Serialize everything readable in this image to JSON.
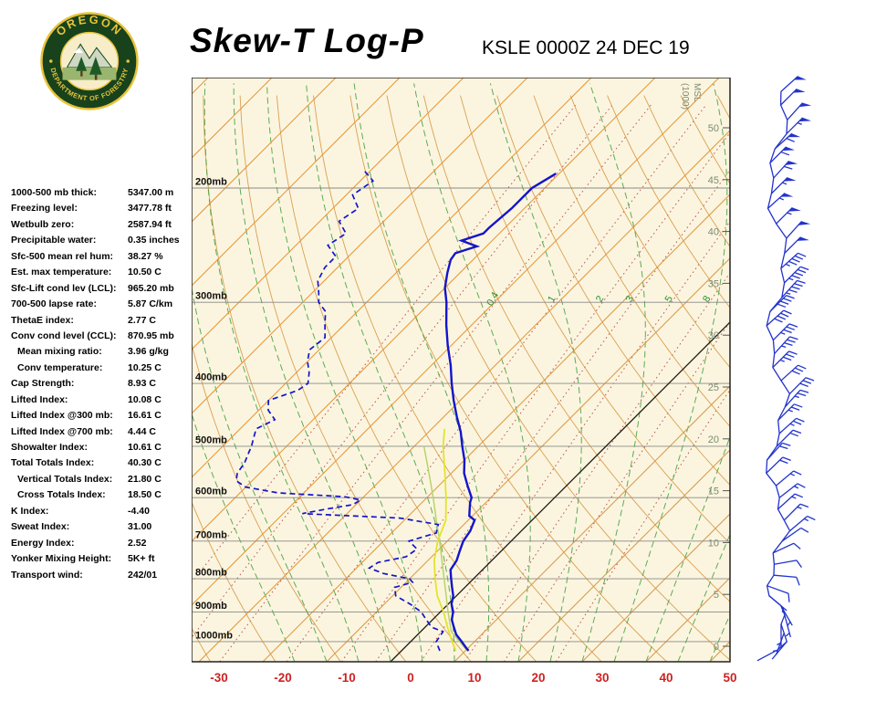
{
  "header": {
    "title": "Skew-T Log-P",
    "station_line": "KSLE 0000Z 24 DEC 19"
  },
  "logo": {
    "top_text": "OREGON",
    "bottom_text": "DEPARTMENT OF FORESTRY"
  },
  "indices": [
    {
      "label": "1000-500 mb thick:",
      "value": "5347.00 m",
      "indent": false
    },
    {
      "label": "Freezing level:",
      "value": "3477.78 ft",
      "indent": false
    },
    {
      "label": "Wetbulb zero:",
      "value": "2587.94 ft",
      "indent": false
    },
    {
      "label": "Precipitable water:",
      "value": "0.35 inches",
      "indent": false
    },
    {
      "label": "Sfc-500 mean rel hum:",
      "value": "38.27 %",
      "indent": false
    },
    {
      "label": "Est. max temperature:",
      "value": "10.50 C",
      "indent": false
    },
    {
      "label": "Sfc-Lift cond lev (LCL):",
      "value": "965.20 mb",
      "indent": false
    },
    {
      "label": "700-500 lapse rate:",
      "value": "5.87 C/km",
      "indent": false
    },
    {
      "label": "ThetaE index:",
      "value": "2.77 C",
      "indent": false
    },
    {
      "label": "Conv cond level (CCL):",
      "value": "870.95 mb",
      "indent": false
    },
    {
      "label": "Mean mixing ratio:",
      "value": "3.96 g/kg",
      "indent": true
    },
    {
      "label": "Conv temperature:",
      "value": "10.25 C",
      "indent": true
    },
    {
      "label": "Cap Strength:",
      "value": "8.93 C",
      "indent": false
    },
    {
      "label": "Lifted Index:",
      "value": "10.08 C",
      "indent": false
    },
    {
      "label": "Lifted Index @300 mb:",
      "value": "16.61 C",
      "indent": false
    },
    {
      "label": "Lifted Index @700 mb:",
      "value": "4.44 C",
      "indent": false
    },
    {
      "label": "Showalter Index:",
      "value": "10.61 C",
      "indent": false
    },
    {
      "label": "Total Totals Index:",
      "value": "40.30 C",
      "indent": false
    },
    {
      "label": "Vertical Totals Index:",
      "value": "21.80 C",
      "indent": true
    },
    {
      "label": "Cross Totals Index:",
      "value": "18.50 C",
      "indent": true
    },
    {
      "label": "K Index:",
      "value": "-4.40",
      "indent": false
    },
    {
      "label": "Sweat Index:",
      "value": "31.00",
      "indent": false
    },
    {
      "label": "Energy Index:",
      "value": "2.52",
      "indent": false
    },
    {
      "label": "Yonker Mixing Height:",
      "value": "5K+ ft",
      "indent": false
    },
    {
      "label": "Transport wind:",
      "value": "242/01",
      "indent": false
    }
  ],
  "chart_data": {
    "type": "skewt_log_p",
    "title": "Skew-T Log-P",
    "annotation": "KSLE 0000Z 24 DEC 19",
    "pressure_axis": {
      "levels_mb": [
        200,
        300,
        400,
        500,
        600,
        700,
        800,
        900,
        1000
      ],
      "label_suffix": "mb"
    },
    "temp_axis": {
      "ticks_c": [
        -30,
        -20,
        -10,
        0,
        10,
        20,
        30,
        40,
        50
      ]
    },
    "height_axis": {
      "ticks_kft": [
        0,
        5,
        10,
        15,
        20,
        25,
        30,
        35,
        40,
        45,
        50
      ],
      "notes": [
        "(1000)",
        "MSL"
      ]
    },
    "mixing_ratio_lines_gkg": [
      0.1,
      0.2,
      0.4,
      1,
      2,
      3,
      5,
      8,
      12,
      20
    ],
    "mixing_ratio_labels_gkg": [
      0.4,
      1,
      2,
      3,
      5,
      8
    ],
    "isotherms_c": {
      "min": -120,
      "max": 50,
      "step": 10
    },
    "dry_adiabats_k": {
      "min": 240,
      "max": 420,
      "step": 10
    },
    "moist_adiabats_start_c": {
      "min": -15,
      "max": 55,
      "step": 5
    },
    "sounding": {
      "temperature_p_c": [
        [
          1033,
          10.5
        ],
        [
          1020,
          9.5
        ],
        [
          1000,
          8.0
        ],
        [
          975,
          6.0
        ],
        [
          950,
          4.5
        ],
        [
          925,
          3.0
        ],
        [
          900,
          2.0
        ],
        [
          875,
          0.5
        ],
        [
          850,
          -0.5
        ],
        [
          825,
          -2.0
        ],
        [
          800,
          -3.5
        ],
        [
          775,
          -5.0
        ],
        [
          750,
          -5.5
        ],
        [
          725,
          -6.5
        ],
        [
          700,
          -7.5
        ],
        [
          675,
          -8.0
        ],
        [
          650,
          -9.0
        ],
        [
          640,
          -10.5
        ],
        [
          625,
          -11.5
        ],
        [
          610,
          -12.5
        ],
        [
          600,
          -13.0
        ],
        [
          575,
          -15.5
        ],
        [
          550,
          -18.0
        ],
        [
          525,
          -20.0
        ],
        [
          500,
          -22.5
        ],
        [
          475,
          -25.0
        ],
        [
          450,
          -28.0
        ],
        [
          425,
          -31.0
        ],
        [
          400,
          -34.0
        ],
        [
          375,
          -37.0
        ],
        [
          350,
          -40.5
        ],
        [
          325,
          -44.0
        ],
        [
          300,
          -47.5
        ],
        [
          285,
          -50.0
        ],
        [
          270,
          -52.0
        ],
        [
          258,
          -53.5
        ],
        [
          252,
          -53.8
        ],
        [
          246,
          -51.5
        ],
        [
          241,
          -54.8
        ],
        [
          235,
          -52.5
        ],
        [
          230,
          -52.5
        ],
        [
          215,
          -52.0
        ],
        [
          200,
          -52.0
        ],
        [
          190,
          -50.5
        ]
      ],
      "dewpoint_p_c": [
        [
          1033,
          6.0
        ],
        [
          1000,
          4.0
        ],
        [
          965,
          3.5
        ],
        [
          950,
          1.0
        ],
        [
          925,
          -1.0
        ],
        [
          900,
          -3.0
        ],
        [
          875,
          -6.0
        ],
        [
          850,
          -9.5
        ],
        [
          825,
          -11.0
        ],
        [
          810,
          -9.0
        ],
        [
          800,
          -10.0
        ],
        [
          785,
          -15.0
        ],
        [
          770,
          -18.0
        ],
        [
          755,
          -17.5
        ],
        [
          740,
          -14.0
        ],
        [
          720,
          -13.5
        ],
        [
          700,
          -16.0
        ],
        [
          680,
          -13.0
        ],
        [
          660,
          -14.0
        ],
        [
          645,
          -21.0
        ],
        [
          635,
          -37.0
        ],
        [
          625,
          -34.0
        ],
        [
          615,
          -30.5
        ],
        [
          605,
          -30.0
        ],
        [
          598,
          -33.0
        ],
        [
          590,
          -44.0
        ],
        [
          578,
          -50.0
        ],
        [
          565,
          -52.5
        ],
        [
          550,
          -53.5
        ],
        [
          530,
          -54.0
        ],
        [
          510,
          -55.0
        ],
        [
          500,
          -55.5
        ],
        [
          485,
          -56.5
        ],
        [
          470,
          -57.5
        ],
        [
          455,
          -56.0
        ],
        [
          440,
          -58.5
        ],
        [
          425,
          -60.0
        ],
        [
          410,
          -57.0
        ],
        [
          400,
          -56.5
        ],
        [
          385,
          -58.0
        ],
        [
          370,
          -60.0
        ],
        [
          355,
          -61.5
        ],
        [
          340,
          -61.0
        ],
        [
          325,
          -63.0
        ],
        [
          310,
          -65.0
        ],
        [
          300,
          -67.5
        ],
        [
          290,
          -69.0
        ],
        [
          278,
          -71.0
        ],
        [
          265,
          -72.0
        ],
        [
          255,
          -72.0
        ],
        [
          245,
          -75.0
        ],
        [
          235,
          -74.0
        ],
        [
          225,
          -77.0
        ],
        [
          215,
          -76.0
        ],
        [
          205,
          -79.0
        ],
        [
          195,
          -78.0
        ],
        [
          188,
          -81.0
        ]
      ],
      "wetbulb_p_c": [
        [
          1033,
          8.5
        ],
        [
          1000,
          6.5
        ],
        [
          950,
          3.5
        ],
        [
          900,
          0.5
        ],
        [
          850,
          -3.0
        ],
        [
          800,
          -6.0
        ],
        [
          750,
          -9.0
        ],
        [
          700,
          -11.5
        ],
        [
          650,
          -13.5
        ],
        [
          600,
          -17.0
        ],
        [
          550,
          -21.0
        ],
        [
          500,
          -25.5
        ],
        [
          470,
          -28.0
        ]
      ],
      "parcel_p_c": [
        [
          1033,
          10.3
        ],
        [
          965,
          4.8
        ],
        [
          900,
          1.2
        ],
        [
          850,
          -1.6
        ],
        [
          800,
          -4.6
        ],
        [
          750,
          -7.8
        ],
        [
          700,
          -11.2
        ],
        [
          650,
          -15.0
        ],
        [
          600,
          -19.0
        ],
        [
          550,
          -23.5
        ],
        [
          500,
          -28.5
        ]
      ]
    },
    "winds_p_dir_kt": [
      [
        1030,
        242,
        1
      ],
      [
        1000,
        220,
        2
      ],
      [
        970,
        200,
        3
      ],
      [
        940,
        180,
        4
      ],
      [
        910,
        165,
        5
      ],
      [
        880,
        150,
        6
      ],
      [
        850,
        130,
        7
      ],
      [
        820,
        110,
        8
      ],
      [
        790,
        95,
        9
      ],
      [
        760,
        80,
        10
      ],
      [
        730,
        65,
        11
      ],
      [
        700,
        55,
        12
      ],
      [
        675,
        50,
        13
      ],
      [
        650,
        45,
        14
      ],
      [
        625,
        48,
        15
      ],
      [
        600,
        52,
        16
      ],
      [
        575,
        50,
        17
      ],
      [
        550,
        46,
        18
      ],
      [
        525,
        42,
        20
      ],
      [
        500,
        45,
        22
      ],
      [
        478,
        48,
        24
      ],
      [
        456,
        45,
        25
      ],
      [
        435,
        42,
        27
      ],
      [
        415,
        45,
        29
      ],
      [
        396,
        48,
        31
      ],
      [
        378,
        45,
        33
      ],
      [
        360,
        42,
        35
      ],
      [
        343,
        45,
        37
      ],
      [
        326,
        48,
        39
      ],
      [
        310,
        45,
        41
      ],
      [
        295,
        42,
        43
      ],
      [
        280,
        45,
        45
      ],
      [
        266,
        48,
        47
      ],
      [
        252,
        45,
        49
      ],
      [
        239,
        42,
        51
      ],
      [
        227,
        45,
        53
      ],
      [
        215,
        48,
        55
      ],
      [
        204,
        45,
        57
      ],
      [
        193,
        42,
        58
      ],
      [
        183,
        45,
        60
      ],
      [
        174,
        48,
        58
      ],
      [
        165,
        45,
        55
      ],
      [
        157,
        42,
        52
      ],
      [
        149,
        45,
        50
      ],
      [
        142,
        48,
        48
      ]
    ]
  },
  "colors": {
    "chart_bg": "#fbf5df",
    "isotherm": "#de9640",
    "dry_adiabat": "#d4913a",
    "moist_adiabat": "#3f9e3f",
    "mixing_ratio": "#b84848",
    "mixing_label": "#2f8f2f",
    "pressure_line": "#8a8a8a",
    "freezing_line": "#1a1a1a",
    "temperature_trace": "#1414cc",
    "dewpoint_trace": "#1414cc",
    "wetbulb_trace": "#e3e32e",
    "parcel_trace": "#b9d36a",
    "axis_temp_label": "#cc2222",
    "height_label": "#7e8a72",
    "wind_barb": "#2233cc",
    "border": "#222222",
    "logo_green": "#17421c",
    "logo_gold": "#e8c33a"
  }
}
